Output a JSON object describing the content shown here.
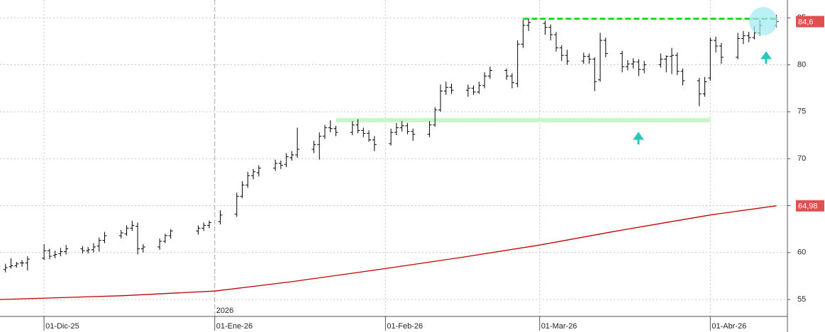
{
  "chart_data": {
    "type": "ohlc",
    "x": [
      "2025-11-24",
      "2025-11-25",
      "2025-11-26",
      "2025-11-27",
      "2025-11-28",
      "2025-12-01",
      "2025-12-02",
      "2025-12-03",
      "2025-12-04",
      "2025-12-05",
      "2025-12-08",
      "2025-12-09",
      "2025-12-10",
      "2025-12-11",
      "2025-12-12",
      "2025-12-15",
      "2025-12-16",
      "2025-12-17",
      "2025-12-18",
      "2025-12-19",
      "2025-12-22",
      "2025-12-23",
      "2025-12-24",
      "2025-12-29",
      "2025-12-30",
      "2025-12-31",
      "2026-01-02",
      "2026-01-05",
      "2026-01-06",
      "2026-01-07",
      "2026-01-08",
      "2026-01-09",
      "2026-01-12",
      "2026-01-13",
      "2026-01-14",
      "2026-01-15",
      "2026-01-16",
      "2026-01-19",
      "2026-01-20",
      "2026-01-21",
      "2026-01-22",
      "2026-01-23",
      "2026-01-26",
      "2026-01-27",
      "2026-01-28",
      "2026-01-29",
      "2026-01-30",
      "2026-02-02",
      "2026-02-03",
      "2026-02-04",
      "2026-02-05",
      "2026-02-06",
      "2026-02-09",
      "2026-02-10",
      "2026-02-11",
      "2026-02-12",
      "2026-02-13",
      "2026-02-16",
      "2026-02-17",
      "2026-02-18",
      "2026-02-19",
      "2026-02-20",
      "2026-02-23",
      "2026-02-24",
      "2026-02-25",
      "2026-02-26",
      "2026-02-27",
      "2026-03-02",
      "2026-03-03",
      "2026-03-04",
      "2026-03-05",
      "2026-03-06",
      "2026-03-09",
      "2026-03-10",
      "2026-03-11",
      "2026-03-12",
      "2026-03-13",
      "2026-03-16",
      "2026-03-17",
      "2026-03-18",
      "2026-03-19",
      "2026-03-20",
      "2026-03-23",
      "2026-03-24",
      "2026-03-25",
      "2026-03-26",
      "2026-03-27",
      "2026-03-30",
      "2026-03-31",
      "2026-04-01",
      "2026-04-02",
      "2026-04-03",
      "2026-04-06",
      "2026-04-07",
      "2026-04-08",
      "2026-04-09",
      "2026-04-10",
      "2026-04-13"
    ],
    "open": [
      58.2,
      58.5,
      58.6,
      58.9,
      58.9,
      59.4,
      60.2,
      59.7,
      59.9,
      60.1,
      60.4,
      60.2,
      60.3,
      60.7,
      61.3,
      61.8,
      62.0,
      62.6,
      62.8,
      60.4,
      60.6,
      61.2,
      61.8,
      62.3,
      62.6,
      62.9,
      63.3,
      64.1,
      66.0,
      67.2,
      68.2,
      68.5,
      69.0,
      69.5,
      69.4,
      70.1,
      70.4,
      71.0,
      71.5,
      72.4,
      73.3,
      73.2,
      72.8,
      73.6,
      73.0,
      72.7,
      72.0,
      71.6,
      72.8,
      73.3,
      73.5,
      72.9,
      72.6,
      73.6,
      75.2,
      77.2,
      77.6,
      77.3,
      77.5,
      77.1,
      77.8,
      78.8,
      79.4,
      78.8,
      78.0,
      82.2,
      84.2,
      84.4,
      84.0,
      83.2,
      81.8,
      81.0,
      80.4,
      80.9,
      80.6,
      78.4,
      82.6,
      81.2,
      79.8,
      80.1,
      80.3,
      79.5,
      80.0,
      80.6,
      80.9,
      81.0,
      79.3,
      78.3,
      76.9,
      78.6,
      82.6,
      82.0,
      80.8,
      82.8,
      83.1,
      82.9,
      83.4,
      84.2
    ],
    "high": [
      58.8,
      59.4,
      59.0,
      59.2,
      59.6,
      60.9,
      60.4,
      60.2,
      60.5,
      60.8,
      60.7,
      60.6,
      61.0,
      61.6,
      62.2,
      62.4,
      62.9,
      63.4,
      63.2,
      60.9,
      61.5,
      62.0,
      62.5,
      62.9,
      63.2,
      63.4,
      64.5,
      66.4,
      67.6,
      68.6,
      68.9,
      69.3,
      69.9,
      69.8,
      70.6,
      70.8,
      73.3,
      71.9,
      72.8,
      73.6,
      74.1,
      73.5,
      74.0,
      74.2,
      73.3,
      73.0,
      72.4,
      73.2,
      73.8,
      74.0,
      73.8,
      73.2,
      74.0,
      75.5,
      77.9,
      78.2,
      78.0,
      77.9,
      77.8,
      78.2,
      79.2,
      79.8,
      79.6,
      79.1,
      82.6,
      84.8,
      84.9,
      84.7,
      84.3,
      83.5,
      82.1,
      81.6,
      81.3,
      81.2,
      80.8,
      83.4,
      82.9,
      81.5,
      80.5,
      80.7,
      80.6,
      80.4,
      81.2,
      81.0,
      81.8,
      81.3,
      79.6,
      78.6,
      78.7,
      82.9,
      83.0,
      82.3,
      83.4,
      83.6,
      83.5,
      84.1,
      84.8,
      85.3
    ],
    "low": [
      57.9,
      58.3,
      58.4,
      58.5,
      58.1,
      59.2,
      59.3,
      59.4,
      59.6,
      59.8,
      59.9,
      59.9,
      60.0,
      60.1,
      61.0,
      61.5,
      61.8,
      62.3,
      59.8,
      60.0,
      60.3,
      61.0,
      61.5,
      61.9,
      62.3,
      62.6,
      63.0,
      63.8,
      65.8,
      66.9,
      67.8,
      68.1,
      68.7,
      68.9,
      69.1,
      69.8,
      70.1,
      70.6,
      69.9,
      72.1,
      72.8,
      72.4,
      72.5,
      72.7,
      72.3,
      71.8,
      70.8,
      71.4,
      72.5,
      72.9,
      72.6,
      71.9,
      72.3,
      73.4,
      75.0,
      76.8,
      76.9,
      76.6,
      76.8,
      76.9,
      77.5,
      78.5,
      78.4,
      77.5,
      77.6,
      81.8,
      83.6,
      83.2,
      82.6,
      81.4,
      80.4,
      80.0,
      80.1,
      80.1,
      77.2,
      78.2,
      80.8,
      79.2,
      79.4,
      79.6,
      78.8,
      79.1,
      79.7,
      79.2,
      79.0,
      78.9,
      77.8,
      75.6,
      76.6,
      78.3,
      81.3,
      80.1,
      80.6,
      82.2,
      82.4,
      82.7,
      83.1,
      84.0
    ],
    "close": [
      58.4,
      58.6,
      58.8,
      58.9,
      59.3,
      60.2,
      59.6,
      59.8,
      60.1,
      60.4,
      60.2,
      60.3,
      60.6,
      61.3,
      61.8,
      62.1,
      62.6,
      62.9,
      60.4,
      60.6,
      61.2,
      61.8,
      62.3,
      62.6,
      62.9,
      63.2,
      64.0,
      66.0,
      67.2,
      68.2,
      68.6,
      69.0,
      69.5,
      69.3,
      70.2,
      70.4,
      71.0,
      71.5,
      72.4,
      73.3,
      73.2,
      72.8,
      73.6,
      73.0,
      72.7,
      72.0,
      71.5,
      72.8,
      73.3,
      73.5,
      72.9,
      72.6,
      73.6,
      75.2,
      77.2,
      77.6,
      77.3,
      77.5,
      77.1,
      77.8,
      78.8,
      79.4,
      78.8,
      78.1,
      82.2,
      84.2,
      84.5,
      84.0,
      83.2,
      81.8,
      81.0,
      80.4,
      80.9,
      80.6,
      78.2,
      82.6,
      81.2,
      79.8,
      80.1,
      80.3,
      79.5,
      80.0,
      80.6,
      80.9,
      81.0,
      79.3,
      78.3,
      76.9,
      78.2,
      82.6,
      82.0,
      80.8,
      82.8,
      83.1,
      82.9,
      83.4,
      84.2,
      84.6
    ],
    "color": "#000000",
    "close_label": "84,6",
    "moving_average": {
      "x": [
        "2025-11-23",
        "2025-12-15",
        "2026-01-01",
        "2026-01-15",
        "2026-02-01",
        "2026-02-15",
        "2026-03-01",
        "2026-03-15",
        "2026-04-01",
        "2026-04-13"
      ],
      "values": [
        55.0,
        55.4,
        55.9,
        56.9,
        58.3,
        59.5,
        60.8,
        62.3,
        64.0,
        64.98
      ],
      "color": "#c00000",
      "value_label": "64,98"
    },
    "levels": [
      {
        "value": 84.9,
        "from": "2026-02-26",
        "to": "2026-04-13",
        "color": "#22dd22",
        "style": "dashed"
      },
      {
        "value": 74.1,
        "from": "2026-01-23",
        "to": "2026-04-01",
        "color": "#c8f5c8",
        "style": "solid"
      }
    ],
    "xlim": [
      "2025-11-23",
      "2026-04-15"
    ],
    "xticks": [
      {
        "value": "2025-12-01",
        "label": "01-Dic-25"
      },
      {
        "value": "2026-01-01",
        "label": "01-Ene-26"
      },
      {
        "value": "2026-02-01",
        "label": "01-Feb-26"
      },
      {
        "value": "2026-03-01",
        "label": "01-Mar-26"
      },
      {
        "value": "2026-04-01",
        "label": "01-Abr-26"
      }
    ],
    "year_marker": {
      "value": "2026-01-01",
      "label": "2026"
    },
    "ylim": [
      53.2,
      86.9
    ],
    "yticks": [
      55,
      60,
      65,
      70,
      75,
      80,
      85
    ],
    "grid": true
  }
}
